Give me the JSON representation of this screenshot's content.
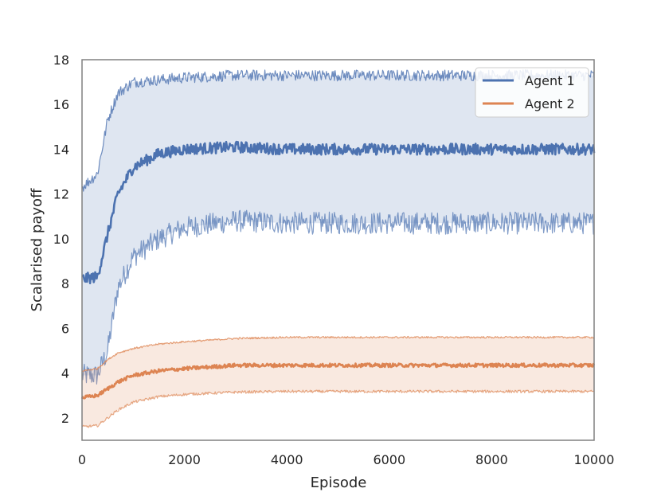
{
  "chart_data": {
    "type": "line",
    "title": "",
    "xlabel": "Episode",
    "ylabel": "Scalarised payoff",
    "xlim": [
      0,
      10000
    ],
    "ylim": [
      1,
      18
    ],
    "xticks": [
      0,
      2000,
      4000,
      6000,
      8000,
      10000
    ],
    "yticks": [
      2,
      4,
      6,
      8,
      10,
      12,
      14,
      16,
      18
    ],
    "grid": false,
    "legend": "top-right",
    "series": [
      {
        "name": "Agent 1",
        "color": "#4c72b0",
        "x": [
          0,
          300,
          500,
          700,
          1000,
          1500,
          2000,
          3000,
          4000,
          6000,
          8000,
          10000
        ],
        "mean": [
          8.2,
          8.3,
          10.2,
          12.0,
          13.2,
          13.8,
          14.0,
          14.1,
          14.0,
          14.0,
          14.0,
          14.0
        ],
        "lower": [
          3.9,
          3.9,
          5.0,
          7.8,
          9.2,
          10.0,
          10.5,
          10.8,
          10.7,
          10.7,
          10.7,
          10.7
        ],
        "upper": [
          12.3,
          12.9,
          15.3,
          16.5,
          17.0,
          17.1,
          17.2,
          17.3,
          17.3,
          17.3,
          17.3,
          17.3
        ],
        "noise": [
          0.25,
          0.5,
          0.25
        ]
      },
      {
        "name": "Agent 2",
        "color": "#dd8452",
        "x": [
          0,
          300,
          500,
          700,
          1000,
          1500,
          2000,
          3000,
          4000,
          6000,
          8000,
          10000
        ],
        "mean": [
          2.9,
          3.0,
          3.3,
          3.6,
          3.9,
          4.1,
          4.2,
          4.35,
          4.35,
          4.35,
          4.35,
          4.35
        ],
        "lower": [
          1.6,
          1.65,
          2.0,
          2.35,
          2.7,
          2.95,
          3.05,
          3.15,
          3.18,
          3.18,
          3.18,
          3.18
        ],
        "upper": [
          4.1,
          4.2,
          4.6,
          4.9,
          5.1,
          5.3,
          5.4,
          5.55,
          5.6,
          5.6,
          5.6,
          5.6
        ],
        "noise": [
          0.08,
          0.06,
          0.04
        ]
      }
    ]
  }
}
